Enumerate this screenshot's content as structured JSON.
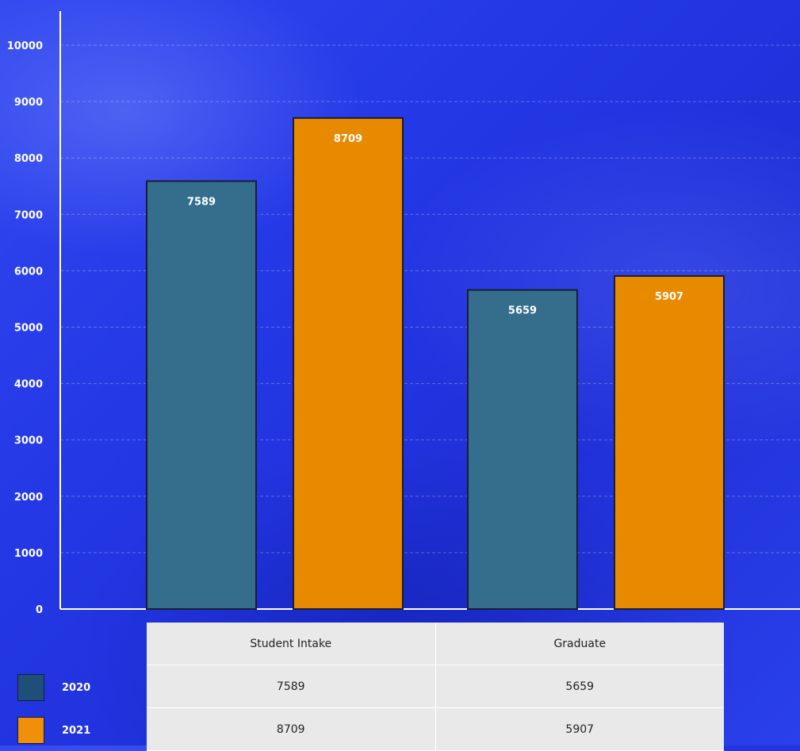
{
  "chart_data": {
    "type": "bar",
    "categories": [
      "Student Intake",
      "Graduate"
    ],
    "series": [
      {
        "name": "2020",
        "values": [
          7589,
          5659
        ],
        "color": "#356d8c"
      },
      {
        "name": "2021",
        "values": [
          8709,
          5907
        ],
        "color": "#e88a00"
      }
    ],
    "ylim": [
      0,
      10000
    ],
    "yticks": [
      0,
      1000,
      2000,
      3000,
      4000,
      5000,
      6000,
      7000,
      8000,
      9000,
      10000
    ],
    "grid": true,
    "legend_placement": "bottom-left data table",
    "data_labels": true
  },
  "table": {
    "headers": [
      "Student Intake",
      "Graduate"
    ],
    "rows": [
      {
        "label": "2020",
        "values": [
          "7589",
          "5659"
        ],
        "color": "#1e4f78"
      },
      {
        "label": "2021",
        "values": [
          "8709",
          "5907"
        ],
        "color": "#f0900a"
      }
    ]
  }
}
